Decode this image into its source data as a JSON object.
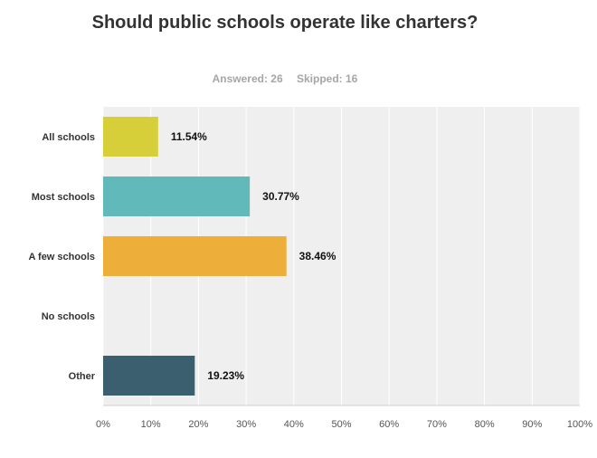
{
  "title": "Should public schools operate like charters?",
  "stats": {
    "answered": "Answered: 26",
    "skipped": "Skipped: 16"
  },
  "chart_data": {
    "type": "bar",
    "orientation": "horizontal",
    "categories": [
      "All schools",
      "Most schools",
      "A few schools",
      "No schools",
      "Other"
    ],
    "values": [
      11.54,
      30.77,
      38.46,
      0,
      19.23
    ],
    "value_labels": [
      "11.54%",
      "30.77%",
      "38.46%",
      "",
      "19.23%"
    ],
    "colors": [
      "#d6cf3a",
      "#62b9ba",
      "#eeae3a",
      "#cccccc",
      "#3c5f6f"
    ],
    "xlim": [
      0,
      100
    ],
    "xticks": [
      "0%",
      "10%",
      "20%",
      "30%",
      "40%",
      "50%",
      "60%",
      "70%",
      "80%",
      "90%",
      "100%"
    ],
    "grid": true
  }
}
